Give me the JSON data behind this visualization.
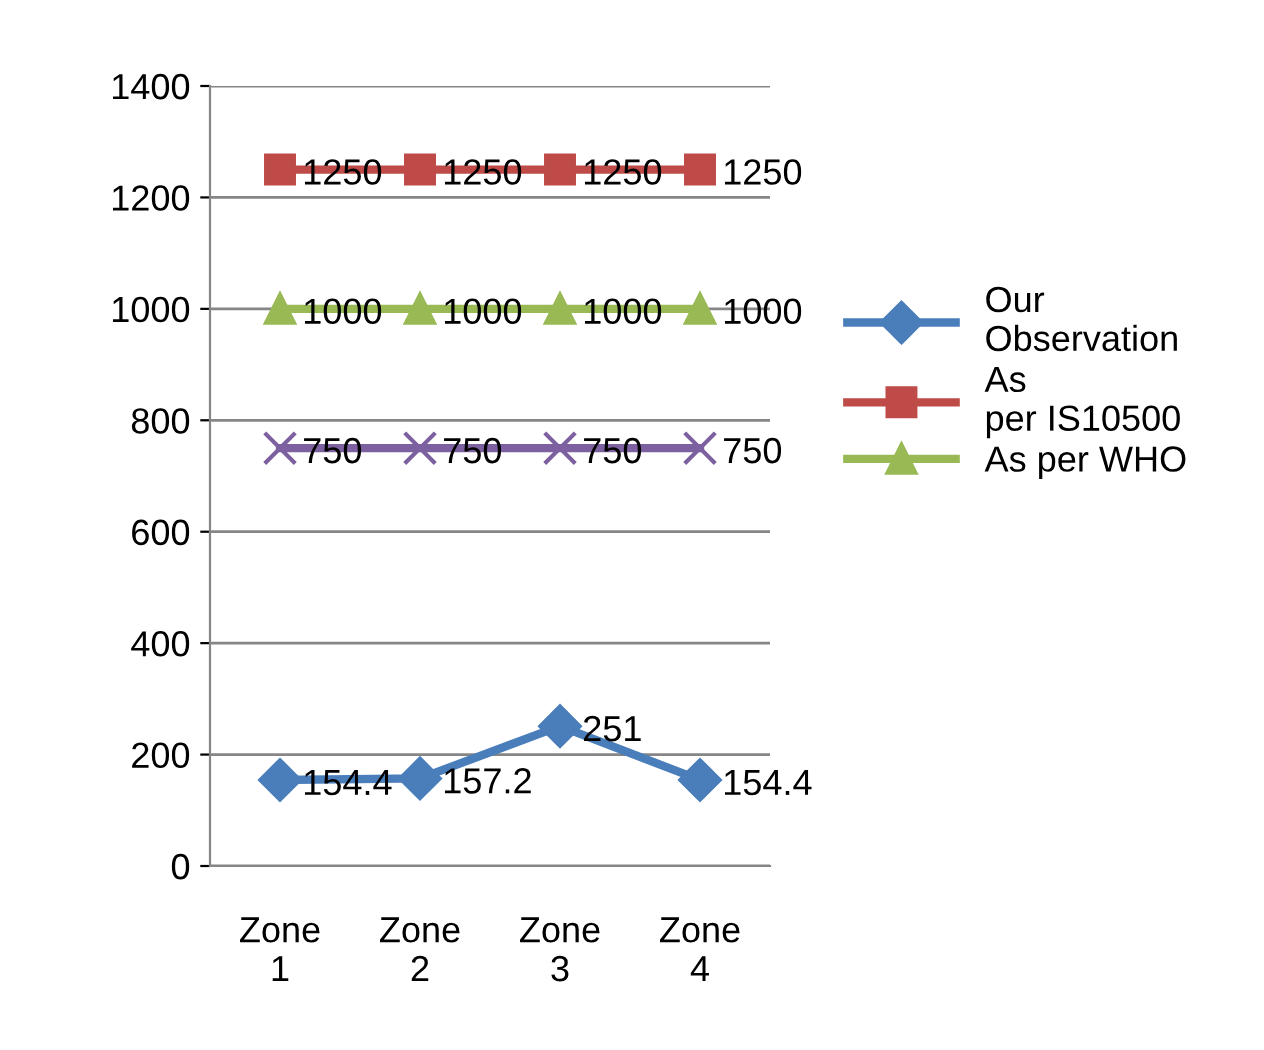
{
  "chart_data": {
    "type": "line",
    "categories": [
      "Zone 1",
      "Zone 2",
      "Zone 3",
      "Zone 4"
    ],
    "series": [
      {
        "name": "Our Observation",
        "color": "#4a7ebb",
        "marker": "diamond",
        "values": [
          154.4,
          157.2,
          251,
          154.4
        ]
      },
      {
        "name": "As per IS10500",
        "color": "#be4b48",
        "marker": "square",
        "values": [
          1250,
          1250,
          1250,
          1250
        ]
      },
      {
        "name": "As per WHO",
        "color": "#98b954",
        "marker": "triangle",
        "values": [
          1000,
          1000,
          1000,
          1000
        ]
      },
      {
        "color": "#7d60a0",
        "marker": "cross",
        "values": [
          750,
          750,
          750,
          750
        ]
      }
    ],
    "ylim": [
      0,
      1400
    ],
    "yticks": [
      0,
      200,
      400,
      600,
      800,
      1000,
      1200,
      1400
    ],
    "grid": "y",
    "legend": "right",
    "data_labels": true,
    "line_style": "solid"
  }
}
